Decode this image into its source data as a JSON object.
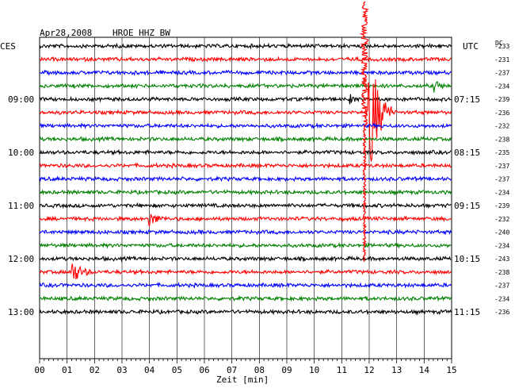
{
  "header": {
    "date": "Apr28,2008",
    "station": "HROE HHZ BW",
    "left_zone": "CES",
    "right_zone": "UTC",
    "dc_label": "DC"
  },
  "chart_data": {
    "type": "line",
    "title": "Apr28,2008  HROE HHZ BW",
    "xlabel": "Zeit [min]",
    "xlim": [
      0,
      15
    ],
    "x_ticks": [
      "00",
      "01",
      "02",
      "03",
      "04",
      "05",
      "06",
      "07",
      "08",
      "09",
      "10",
      "11",
      "12",
      "13",
      "14",
      "15"
    ],
    "left_time_labels": [
      {
        "row": 4,
        "text": "09:00"
      },
      {
        "row": 8,
        "text": "10:00"
      },
      {
        "row": 12,
        "text": "11:00"
      },
      {
        "row": 16,
        "text": "12:00"
      },
      {
        "row": 20,
        "text": "13:00"
      }
    ],
    "right_time_labels": [
      {
        "row": 4,
        "text": "07:15"
      },
      {
        "row": 8,
        "text": "08:15"
      },
      {
        "row": 12,
        "text": "09:15"
      },
      {
        "row": 16,
        "text": "10:15"
      },
      {
        "row": 20,
        "text": "11:15"
      }
    ],
    "colors": [
      "#000000",
      "#ff0000",
      "#0000ff",
      "#008000"
    ],
    "trace_dc": [
      "-233",
      "-231",
      "-237",
      "-234",
      "-239",
      "-236",
      "-232",
      "-238",
      "-235",
      "-237",
      "-237",
      "-234",
      "-239",
      "-232",
      "-240",
      "-234",
      "-243",
      "-238",
      "-237",
      "-234",
      "-236"
    ],
    "events": [
      {
        "row": 3,
        "minute": 14.4,
        "amp": 6,
        "dur": 0.5
      },
      {
        "row": 17,
        "minute": 1.2,
        "amp": 14,
        "dur": 0.8
      },
      {
        "row": 13,
        "minute": 4.0,
        "amp": 9,
        "dur": 0.7
      },
      {
        "row": 5,
        "minute": 12.0,
        "amp": 90,
        "dur": 0.9
      },
      {
        "row": 4,
        "minute": 11.3,
        "amp": 5,
        "dur": 0.4
      }
    ],
    "grid": true
  }
}
